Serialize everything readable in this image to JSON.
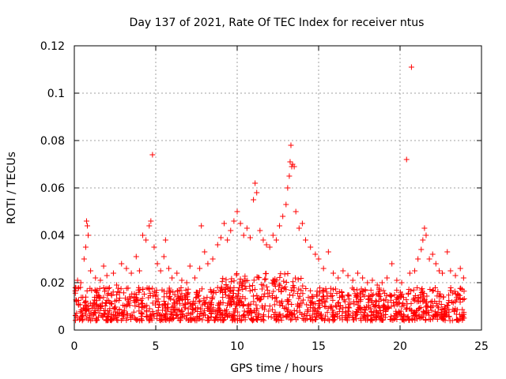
{
  "chart_data": {
    "type": "scatter",
    "title": "Day 137 of 2021, Rate Of TEC Index for receiver ntus",
    "xlabel": "GPS time / hours",
    "ylabel": "ROTI / TECUs",
    "xlim": [
      0,
      25
    ],
    "ylim": [
      0,
      0.12
    ],
    "xticks": [
      "0",
      "5",
      "10",
      "15",
      "20",
      "25"
    ],
    "yticks": [
      "0",
      "0.02",
      "0.04",
      "0.06",
      "0.08",
      "0.1",
      "0.12"
    ],
    "grid": true,
    "marker": "+",
    "color": "#ff0000",
    "points": [
      [
        0.2,
        0.021
      ],
      [
        0.4,
        0.02
      ],
      [
        0.6,
        0.03
      ],
      [
        0.7,
        0.035
      ],
      [
        0.75,
        0.046
      ],
      [
        0.8,
        0.044
      ],
      [
        0.85,
        0.04
      ],
      [
        1.0,
        0.025
      ],
      [
        1.3,
        0.022
      ],
      [
        1.6,
        0.021
      ],
      [
        1.8,
        0.027
      ],
      [
        2.0,
        0.023
      ],
      [
        2.4,
        0.024
      ],
      [
        2.6,
        0.019
      ],
      [
        2.9,
        0.028
      ],
      [
        3.2,
        0.026
      ],
      [
        3.5,
        0.024
      ],
      [
        3.8,
        0.031
      ],
      [
        4.0,
        0.025
      ],
      [
        4.2,
        0.04
      ],
      [
        4.4,
        0.038
      ],
      [
        4.6,
        0.044
      ],
      [
        4.7,
        0.046
      ],
      [
        4.8,
        0.074
      ],
      [
        4.9,
        0.035
      ],
      [
        5.1,
        0.028
      ],
      [
        5.3,
        0.025
      ],
      [
        5.5,
        0.031
      ],
      [
        5.6,
        0.038
      ],
      [
        5.8,
        0.026
      ],
      [
        6.0,
        0.022
      ],
      [
        6.3,
        0.024
      ],
      [
        6.6,
        0.021
      ],
      [
        6.9,
        0.02
      ],
      [
        7.1,
        0.027
      ],
      [
        7.4,
        0.022
      ],
      [
        7.7,
        0.026
      ],
      [
        7.8,
        0.044
      ],
      [
        8.0,
        0.033
      ],
      [
        8.2,
        0.028
      ],
      [
        8.5,
        0.03
      ],
      [
        8.8,
        0.036
      ],
      [
        9.0,
        0.039
      ],
      [
        9.2,
        0.045
      ],
      [
        9.4,
        0.038
      ],
      [
        9.6,
        0.042
      ],
      [
        9.8,
        0.046
      ],
      [
        10.0,
        0.05
      ],
      [
        10.2,
        0.045
      ],
      [
        10.4,
        0.04
      ],
      [
        10.6,
        0.043
      ],
      [
        10.8,
        0.039
      ],
      [
        11.0,
        0.055
      ],
      [
        11.1,
        0.062
      ],
      [
        11.2,
        0.058
      ],
      [
        11.4,
        0.042
      ],
      [
        11.6,
        0.038
      ],
      [
        11.8,
        0.036
      ],
      [
        12.0,
        0.035
      ],
      [
        12.2,
        0.04
      ],
      [
        12.4,
        0.038
      ],
      [
        12.6,
        0.044
      ],
      [
        12.8,
        0.048
      ],
      [
        13.0,
        0.053
      ],
      [
        13.1,
        0.06
      ],
      [
        13.2,
        0.065
      ],
      [
        13.25,
        0.071
      ],
      [
        13.3,
        0.078
      ],
      [
        13.35,
        0.069
      ],
      [
        13.4,
        0.07
      ],
      [
        13.5,
        0.069
      ],
      [
        13.6,
        0.05
      ],
      [
        13.8,
        0.043
      ],
      [
        14.0,
        0.045
      ],
      [
        14.2,
        0.038
      ],
      [
        14.5,
        0.035
      ],
      [
        14.8,
        0.032
      ],
      [
        15.0,
        0.03
      ],
      [
        15.3,
        0.026
      ],
      [
        15.6,
        0.033
      ],
      [
        15.9,
        0.024
      ],
      [
        16.2,
        0.022
      ],
      [
        16.5,
        0.025
      ],
      [
        16.8,
        0.023
      ],
      [
        17.1,
        0.021
      ],
      [
        17.4,
        0.024
      ],
      [
        17.7,
        0.022
      ],
      [
        18.0,
        0.02
      ],
      [
        18.3,
        0.021
      ],
      [
        18.6,
        0.019
      ],
      [
        18.9,
        0.02
      ],
      [
        19.2,
        0.022
      ],
      [
        19.5,
        0.028
      ],
      [
        19.8,
        0.021
      ],
      [
        20.1,
        0.02
      ],
      [
        20.4,
        0.072
      ],
      [
        20.6,
        0.024
      ],
      [
        20.7,
        0.111
      ],
      [
        20.9,
        0.025
      ],
      [
        21.1,
        0.03
      ],
      [
        21.3,
        0.034
      ],
      [
        21.4,
        0.038
      ],
      [
        21.5,
        0.043
      ],
      [
        21.6,
        0.04
      ],
      [
        21.8,
        0.03
      ],
      [
        22.0,
        0.032
      ],
      [
        22.2,
        0.028
      ],
      [
        22.4,
        0.025
      ],
      [
        22.6,
        0.024
      ],
      [
        22.9,
        0.033
      ],
      [
        23.1,
        0.025
      ],
      [
        23.4,
        0.023
      ],
      [
        23.7,
        0.026
      ],
      [
        23.9,
        0.022
      ]
    ],
    "baseline_band": [
      0.004,
      0.018
    ]
  }
}
